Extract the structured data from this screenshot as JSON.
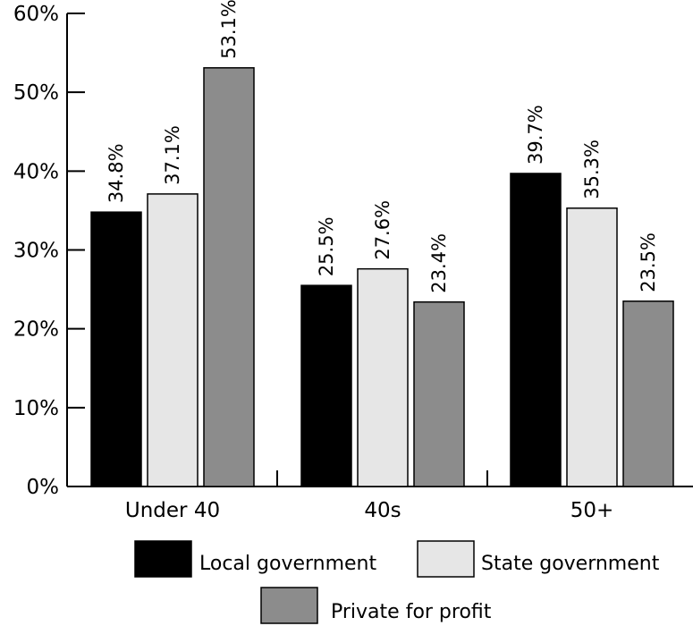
{
  "chart_data": {
    "type": "bar",
    "categories": [
      "Under 40",
      "40s",
      "50+"
    ],
    "series": [
      {
        "name": "Local government",
        "values": [
          34.8,
          25.5,
          39.7
        ],
        "labels": [
          "34.8%",
          "25.5%",
          "39.7%"
        ]
      },
      {
        "name": "State government",
        "values": [
          37.1,
          27.6,
          35.3
        ],
        "labels": [
          "37.1%",
          "27.6%",
          "35.3%"
        ]
      },
      {
        "name": "Private for profit",
        "values": [
          53.1,
          23.4,
          23.5
        ],
        "labels": [
          "53.1%",
          "23.4%",
          "23.5%"
        ]
      }
    ],
    "yticks": [
      "0%",
      "10%",
      "20%",
      "30%",
      "40%",
      "50%",
      "60%"
    ],
    "ylim": [
      0,
      60
    ],
    "grid": false,
    "legend_position": "bottom",
    "colors": {
      "Local government": "#000000",
      "State government": "#e6e6e6",
      "Private for profit": "#8c8c8c"
    }
  }
}
